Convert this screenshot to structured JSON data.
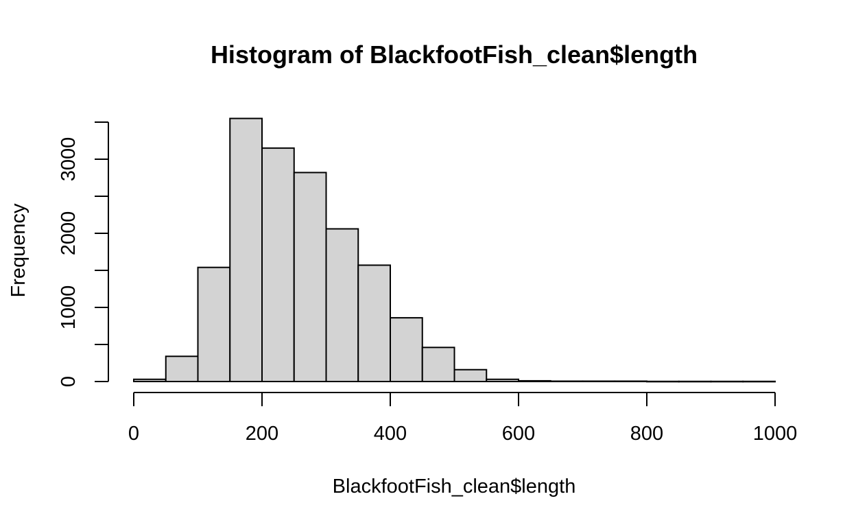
{
  "chart_data": {
    "type": "bar",
    "title": "Histogram of BlackfootFish_clean$length",
    "xlabel": "BlackfootFish_clean$length",
    "ylabel": "Frequency",
    "bin_edges": [
      0,
      50,
      100,
      150,
      200,
      250,
      300,
      350,
      400,
      450,
      500,
      550,
      600,
      650,
      700,
      750,
      800,
      850,
      900,
      950,
      1000
    ],
    "values": [
      30,
      340,
      1540,
      3550,
      3150,
      2820,
      2060,
      1570,
      860,
      460,
      160,
      30,
      10,
      5,
      5,
      5,
      2,
      2,
      2,
      2
    ],
    "xlim": [
      0,
      1000
    ],
    "ylim": [
      0,
      3500
    ],
    "x_ticks": [
      0,
      200,
      400,
      600,
      800,
      1000
    ],
    "x_tick_labels": [
      "0",
      "200",
      "400",
      "600",
      "800",
      "1000"
    ],
    "y_ticks": [
      0,
      500,
      1000,
      1500,
      2000,
      2500,
      3000,
      3500
    ],
    "y_tick_labels": [
      "0",
      "",
      "1000",
      "",
      "2000",
      "",
      "3000",
      ""
    ],
    "grid": false,
    "legend": "none",
    "bar_color": "#d3d3d3"
  }
}
